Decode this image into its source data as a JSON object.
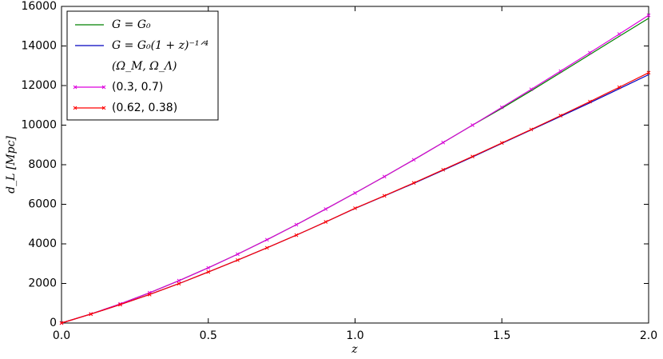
{
  "chart_data": {
    "type": "line",
    "x_label": "z",
    "y_label": "d_L [Mpc]",
    "x": [
      0,
      0.1,
      0.2,
      0.3,
      0.4,
      0.5,
      0.6,
      0.7,
      0.8,
      0.9,
      1.0,
      1.1,
      1.2,
      1.3,
      1.4,
      1.5,
      1.6,
      1.7,
      1.8,
      1.9,
      2.0
    ],
    "series": [
      {
        "name": "G = G₀",
        "color": "#008000",
        "markers": false,
        "values": [
          0,
          455,
          965,
          1530,
          2140,
          2790,
          3480,
          4210,
          4970,
          5760,
          6570,
          7400,
          8250,
          9120,
          10000,
          10850,
          11740,
          12650,
          13570,
          14490,
          15400
        ]
      },
      {
        "name": "G = G₀(1 + z)⁻¹ᐟ⁴",
        "color": "#0000bf",
        "markers": false,
        "values": [
          0,
          450,
          930,
          1440,
          1990,
          2580,
          3180,
          3800,
          4440,
          5110,
          5790,
          6420,
          7060,
          7720,
          8390,
          9080,
          9760,
          10440,
          11130,
          11840,
          12550
        ]
      },
      {
        "name": "(0.3, 0.7)",
        "color": "#dd00dd",
        "markers": true,
        "values": [
          0,
          455,
          965,
          1530,
          2140,
          2790,
          3480,
          4210,
          4970,
          5760,
          6570,
          7400,
          8250,
          9120,
          10000,
          10900,
          11810,
          12730,
          13660,
          14600,
          15550
        ]
      },
      {
        "name": "(0.62, 0.38)",
        "color": "#ff0000",
        "markers": true,
        "values": [
          0,
          450,
          930,
          1440,
          1990,
          2580,
          3180,
          3800,
          4440,
          5110,
          5800,
          6430,
          7080,
          7745,
          8415,
          9100,
          9780,
          10480,
          11190,
          11915,
          12650
        ]
      }
    ],
    "legend_heading": "(Ω_M, Ω_Λ)",
    "legend": "upper left",
    "xlim": [
      0,
      2.0
    ],
    "xticks": [
      {
        "value": 0,
        "label": "0.0"
      },
      0.5,
      {
        "value": 1,
        "label": "1.0"
      },
      1.5,
      {
        "value": 2,
        "label": "2.0"
      }
    ],
    "ylim": [
      0,
      16000
    ],
    "yticks": [
      0,
      2000,
      4000,
      6000,
      8000,
      10000,
      12000,
      14000,
      16000
    ],
    "grid": false
  }
}
